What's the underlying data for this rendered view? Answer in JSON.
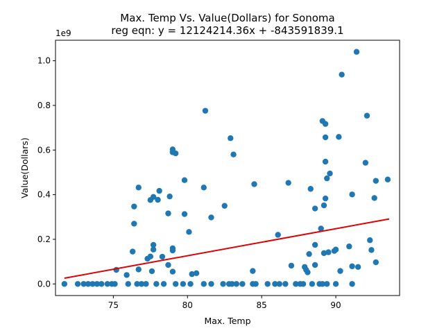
{
  "chart_data": {
    "type": "scatter",
    "title_line1": "Max. Temp Vs. Value(Dollars) for Sonoma",
    "title_line2": "reg eqn: y = 12124214.36x + -843591839.1",
    "xlabel": "Max. Temp",
    "ylabel": "Value(Dollars)",
    "y_scale_label": "1e9",
    "xlim": [
      71.1,
      94.3
    ],
    "ylim": [
      -0.052,
      1.092
    ],
    "xticks": [
      75,
      80,
      85,
      90
    ],
    "xtick_labels": [
      "75",
      "80",
      "85",
      "90"
    ],
    "yticks": [
      0.0,
      0.2,
      0.4,
      0.6,
      0.8,
      1.0
    ],
    "ytick_labels": [
      "0.0",
      "0.2",
      "0.4",
      "0.6",
      "0.8",
      "1.0"
    ],
    "regression": {
      "slope": 12124214.36,
      "intercept": -843591839.1,
      "x_range": [
        71.7,
        93.6
      ]
    },
    "colors": {
      "points": "#1f77b4",
      "regression": "#e00000"
    },
    "points": [
      [
        71.7,
        0.0
      ],
      [
        72.6,
        0.0
      ],
      [
        73.0,
        0.0
      ],
      [
        73.3,
        0.0
      ],
      [
        73.6,
        0.0
      ],
      [
        73.9,
        0.0
      ],
      [
        74.2,
        0.0
      ],
      [
        74.6,
        0.0
      ],
      [
        74.9,
        0.0
      ],
      [
        75.1,
        0.0
      ],
      [
        75.2,
        0.063
      ],
      [
        75.9,
        0.04
      ],
      [
        76.0,
        0.0
      ],
      [
        76.3,
        0.145
      ],
      [
        76.4,
        0.27
      ],
      [
        76.4,
        0.347
      ],
      [
        76.6,
        0.0
      ],
      [
        76.7,
        0.065
      ],
      [
        76.7,
        0.432
      ],
      [
        76.9,
        0.0
      ],
      [
        77.2,
        0.0
      ],
      [
        77.3,
        0.113
      ],
      [
        77.5,
        0.123
      ],
      [
        77.5,
        0.376
      ],
      [
        77.6,
        0.057
      ],
      [
        77.7,
        0.39
      ],
      [
        77.7,
        0.154
      ],
      [
        77.7,
        0.175
      ],
      [
        77.9,
        0.0
      ],
      [
        78.0,
        0.377
      ],
      [
        78.1,
        0.417
      ],
      [
        78.3,
        0.122
      ],
      [
        78.4,
        0.0
      ],
      [
        78.7,
        0.085
      ],
      [
        78.7,
        0.316
      ],
      [
        78.8,
        0.392
      ],
      [
        79.0,
        0.055
      ],
      [
        79.0,
        0.15
      ],
      [
        79.0,
        0.16
      ],
      [
        79.0,
        0.59
      ],
      [
        79.0,
        0.603
      ],
      [
        79.2,
        0.0
      ],
      [
        79.2,
        0.585
      ],
      [
        79.7,
        0.0
      ],
      [
        79.8,
        0.313
      ],
      [
        79.8,
        0.465
      ],
      [
        80.1,
        0.233
      ],
      [
        80.2,
        0.0
      ],
      [
        80.3,
        0.044
      ],
      [
        80.6,
        0.048
      ],
      [
        81.1,
        0.0
      ],
      [
        81.1,
        0.432
      ],
      [
        81.2,
        0.776
      ],
      [
        81.6,
        0.298
      ],
      [
        81.6,
        0.0
      ],
      [
        82.4,
        0.0
      ],
      [
        82.5,
        0.35
      ],
      [
        82.8,
        0.0
      ],
      [
        82.9,
        0.653
      ],
      [
        83.0,
        0.0
      ],
      [
        83.1,
        0.58
      ],
      [
        83.3,
        0.0
      ],
      [
        83.7,
        0.0
      ],
      [
        84.4,
        0.058
      ],
      [
        84.4,
        0.0
      ],
      [
        84.5,
        0.447
      ],
      [
        84.6,
        0.0
      ],
      [
        85.4,
        0.0
      ],
      [
        85.9,
        0.0
      ],
      [
        86.1,
        0.22
      ],
      [
        86.2,
        0.0
      ],
      [
        86.6,
        0.0
      ],
      [
        86.8,
        0.453
      ],
      [
        87.0,
        0.082
      ],
      [
        87.3,
        0.0
      ],
      [
        87.6,
        0.0
      ],
      [
        87.8,
        0.0
      ],
      [
        87.9,
        0.076
      ],
      [
        88.0,
        0.063
      ],
      [
        88.1,
        0.052
      ],
      [
        88.2,
        0.134
      ],
      [
        88.3,
        0.426
      ],
      [
        88.4,
        0.0
      ],
      [
        88.6,
        0.085
      ],
      [
        88.6,
        0.175
      ],
      [
        88.6,
        0.338
      ],
      [
        88.9,
        0.0
      ],
      [
        89.0,
        0.248
      ],
      [
        89.1,
        0.73
      ],
      [
        89.1,
        0.0
      ],
      [
        89.2,
        0.138
      ],
      [
        89.2,
        0.352
      ],
      [
        89.3,
        0.717
      ],
      [
        89.3,
        0.657
      ],
      [
        89.3,
        0.548
      ],
      [
        89.3,
        0.383
      ],
      [
        89.4,
        0.0
      ],
      [
        89.4,
        0.473
      ],
      [
        89.5,
        0.142
      ],
      [
        89.6,
        0.495
      ],
      [
        89.9,
        0.148
      ],
      [
        90.0,
        0.154
      ],
      [
        90.0,
        0.0
      ],
      [
        90.2,
        0.659
      ],
      [
        90.3,
        0.058
      ],
      [
        90.4,
        0.938
      ],
      [
        90.9,
        0.168
      ],
      [
        91.1,
        0.0
      ],
      [
        91.1,
        0.079
      ],
      [
        91.1,
        0.401
      ],
      [
        91.4,
        1.04
      ],
      [
        91.5,
        0.076
      ],
      [
        92.0,
        0.543
      ],
      [
        92.1,
        0.754
      ],
      [
        92.3,
        0.196
      ],
      [
        92.4,
        0.152
      ],
      [
        92.6,
        0.385
      ],
      [
        92.7,
        0.462
      ],
      [
        92.7,
        0.097
      ],
      [
        93.5,
        0.468
      ]
    ]
  }
}
